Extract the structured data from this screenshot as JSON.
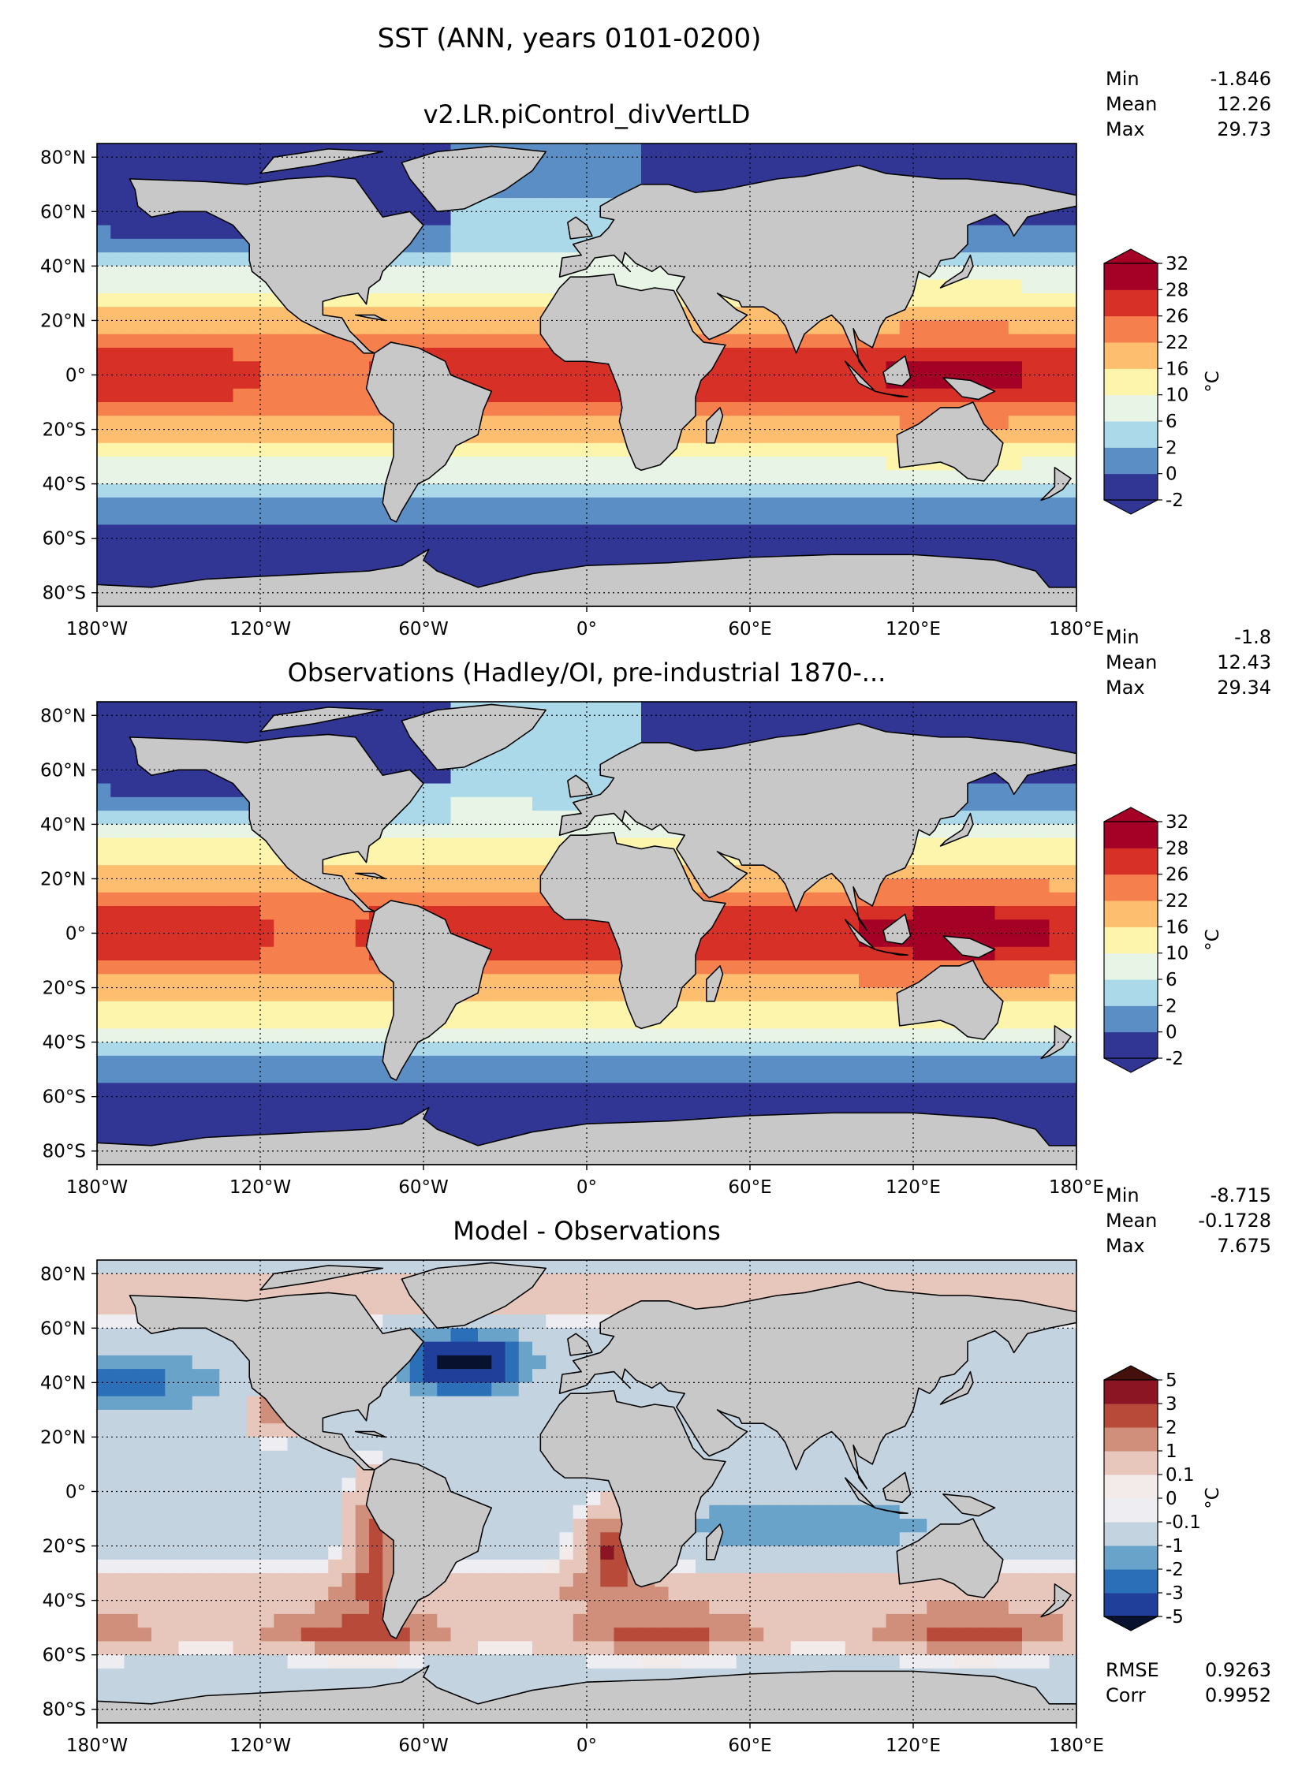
{
  "suptitle": "SST (ANN, years 0101-0200)",
  "colors": {
    "land": "#c8c8c8",
    "grid": "#000000"
  },
  "chart_data": [
    {
      "type": "heatmap",
      "title": "v2.LR.piControl_divVertLD",
      "field": "model",
      "stats": [
        {
          "label": "Min",
          "value": "-1.846"
        },
        {
          "label": "Mean",
          "value": "12.26"
        },
        {
          "label": "Max",
          "value": "29.73"
        }
      ],
      "colorbar": {
        "unit": "°C",
        "ticks": [
          "-2",
          "0",
          "2",
          "6",
          "10",
          "16",
          "22",
          "26",
          "28",
          "32"
        ],
        "colors": [
          "#313695",
          "#5b8ec4",
          "#abd9e9",
          "#e8f5e6",
          "#fef5ad",
          "#fdbe70",
          "#f6804d",
          "#d73027",
          "#a50026"
        ],
        "under": "#313695",
        "over": "#a50026"
      },
      "xticks": [
        "180°W",
        "120°W",
        "60°W",
        "0°",
        "60°E",
        "120°E",
        "180°E"
      ],
      "yticks": [
        "80°N",
        "60°N",
        "40°N",
        "20°N",
        "0°",
        "20°S",
        "40°S",
        "60°S",
        "80°S"
      ]
    },
    {
      "type": "heatmap",
      "title": "Observations (Hadley/OI, pre-industrial 1870-...",
      "field": "obs",
      "stats": [
        {
          "label": "Min",
          "value": "-1.8"
        },
        {
          "label": "Mean",
          "value": "12.43"
        },
        {
          "label": "Max",
          "value": "29.34"
        }
      ],
      "colorbar": {
        "unit": "°C",
        "ticks": [
          "-2",
          "0",
          "2",
          "6",
          "10",
          "16",
          "22",
          "26",
          "28",
          "32"
        ],
        "colors": [
          "#313695",
          "#5b8ec4",
          "#abd9e9",
          "#e8f5e6",
          "#fef5ad",
          "#fdbe70",
          "#f6804d",
          "#d73027",
          "#a50026"
        ],
        "under": "#313695",
        "over": "#a50026"
      },
      "xticks": [
        "180°W",
        "120°W",
        "60°W",
        "0°",
        "60°E",
        "120°E",
        "180°E"
      ],
      "yticks": [
        "80°N",
        "60°N",
        "40°N",
        "20°N",
        "0°",
        "20°S",
        "40°S",
        "60°S",
        "80°S"
      ]
    },
    {
      "type": "heatmap",
      "title": "Model - Observations",
      "field": "diff",
      "stats": [
        {
          "label": "Min",
          "value": "-8.715"
        },
        {
          "label": "Mean",
          "value": "-0.1728"
        },
        {
          "label": "Max",
          "value": "7.675"
        }
      ],
      "metrics": [
        {
          "label": "RMSE",
          "value": "0.9263"
        },
        {
          "label": "Corr",
          "value": "0.9952"
        }
      ],
      "colorbar": {
        "unit": "°C",
        "ticks": [
          "-5",
          "-3",
          "-2",
          "-1",
          "-0.1",
          "0",
          "0.1",
          "1",
          "2",
          "3",
          "5"
        ],
        "colors": [
          "#1f3f9a",
          "#2b6fb8",
          "#6aa3c9",
          "#c3d3e0",
          "#eeeef2",
          "#f3ebea",
          "#e7c6bc",
          "#d08f7a",
          "#b84a3a",
          "#8c1524"
        ],
        "under": "#08122e",
        "over": "#43100c"
      },
      "xticks": [
        "180°W",
        "120°W",
        "60°W",
        "0°",
        "60°E",
        "120°E",
        "180°E"
      ],
      "yticks": [
        "80°N",
        "60°N",
        "40°N",
        "20°N",
        "0°",
        "20°S",
        "40°S",
        "60°S",
        "80°S"
      ]
    }
  ]
}
